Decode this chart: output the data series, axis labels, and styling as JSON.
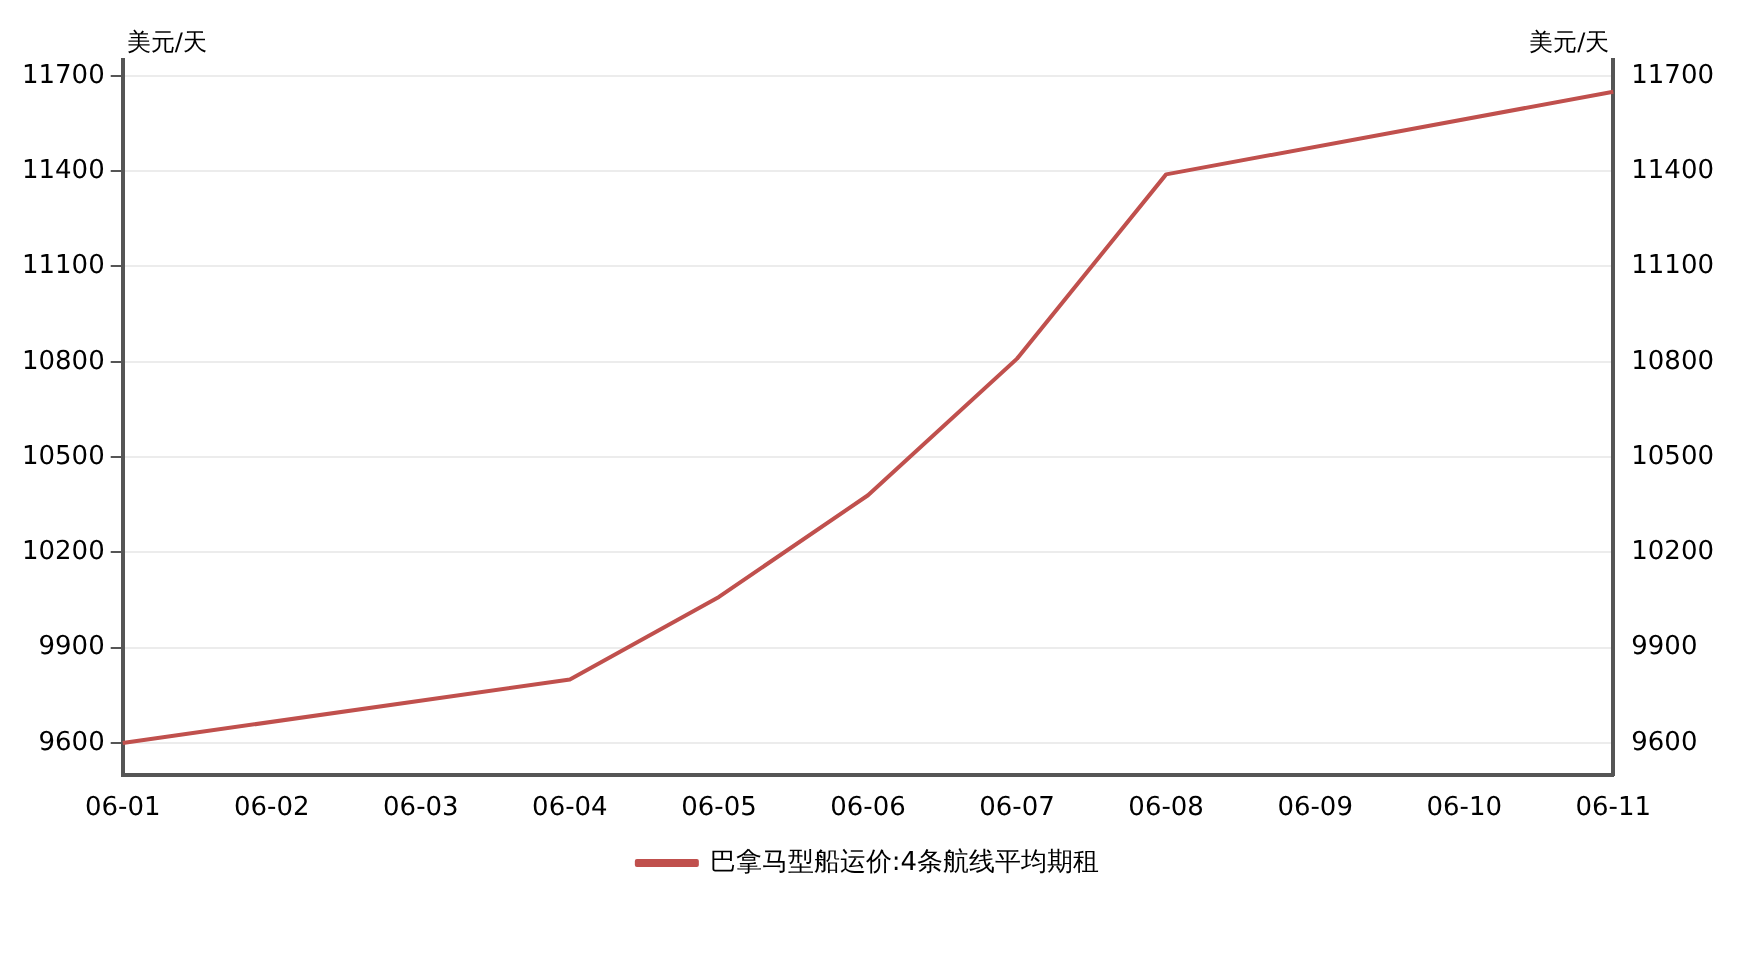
{
  "chart_data": {
    "type": "line",
    "ylabel": "美元/天",
    "y2label": "美元/天",
    "categories": [
      "06-01",
      "06-02",
      "06-03",
      "06-04",
      "06-05",
      "06-06",
      "06-07",
      "06-08",
      "06-09",
      "06-10",
      "06-11"
    ],
    "series": [
      {
        "name": "巴拿马型船运价:4条航线平均期租",
        "color": "#c0504d",
        "values": [
          9600,
          null,
          null,
          9800,
          10060,
          10380,
          10810,
          11390,
          null,
          null,
          11650
        ]
      }
    ],
    "ylim": [
      9500,
      11750
    ],
    "yticks": [
      9600,
      9900,
      10200,
      10500,
      10800,
      11100,
      11400,
      11700
    ],
    "y2lim": [
      9500,
      11750
    ],
    "y2ticks": [
      9600,
      9900,
      10200,
      10500,
      10800,
      11100,
      11400,
      11700
    ],
    "grid": "y",
    "legend": "bottom",
    "marker": "none",
    "line_style": "solid"
  }
}
